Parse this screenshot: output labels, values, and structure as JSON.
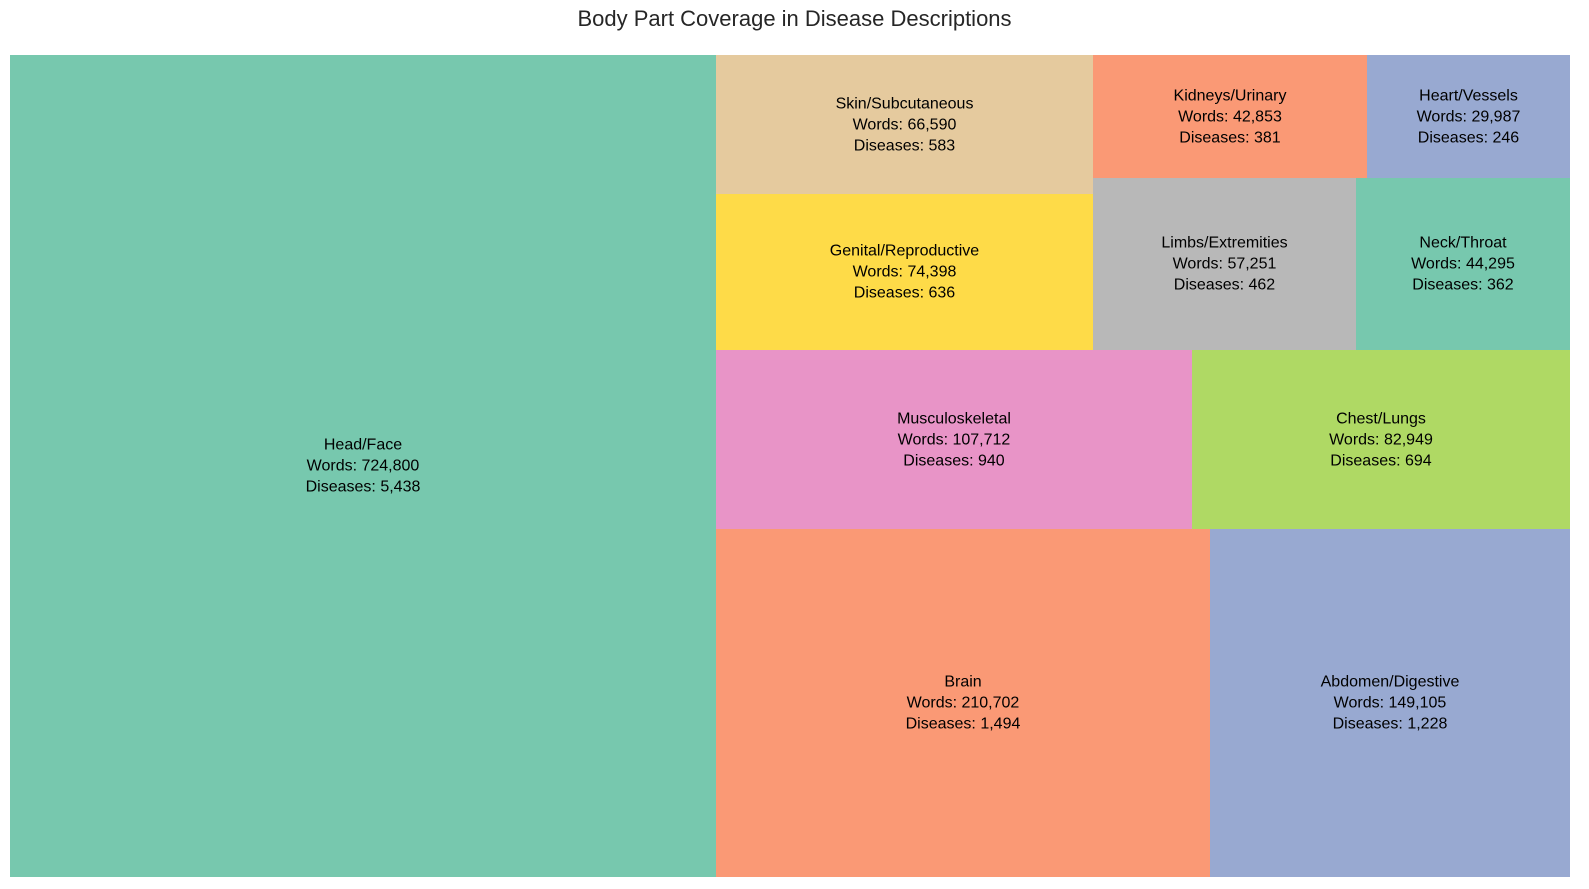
{
  "chart_data": {
    "type": "treemap",
    "title": "Body Part Coverage in Disease Descriptions",
    "words_prefix": "Words: ",
    "diseases_prefix": "Diseases: ",
    "items": [
      {
        "label": "Head/Face",
        "words": 724800,
        "diseases": 5438,
        "words_text": "724,800",
        "diseases_text": "5,438",
        "color": "#77c8ae"
      },
      {
        "label": "Brain",
        "words": 210702,
        "diseases": 1494,
        "words_text": "210,702",
        "diseases_text": "1,494",
        "color": "#fa9975"
      },
      {
        "label": "Abdomen/Digestive",
        "words": 149105,
        "diseases": 1228,
        "words_text": "149,105",
        "diseases_text": "1,228",
        "color": "#98a9d1"
      },
      {
        "label": "Musculoskeletal",
        "words": 107712,
        "diseases": 940,
        "words_text": "107,712",
        "diseases_text": "940",
        "color": "#e894c7"
      },
      {
        "label": "Chest/Lungs",
        "words": 82949,
        "diseases": 694,
        "words_text": "82,949",
        "diseases_text": "694",
        "color": "#afd964"
      },
      {
        "label": "Genital/Reproductive",
        "words": 74398,
        "diseases": 636,
        "words_text": "74,398",
        "diseases_text": "636",
        "color": "#fedb48"
      },
      {
        "label": "Skin/Subcutaneous",
        "words": 66590,
        "diseases": 583,
        "words_text": "66,590",
        "diseases_text": "583",
        "color": "#e5ca9e"
      },
      {
        "label": "Limbs/Extremities",
        "words": 57251,
        "diseases": 462,
        "words_text": "57,251",
        "diseases_text": "462",
        "color": "#b8b8b8"
      },
      {
        "label": "Neck/Throat",
        "words": 44295,
        "diseases": 362,
        "words_text": "44,295",
        "diseases_text": "362",
        "color": "#77c8ae"
      },
      {
        "label": "Kidneys/Urinary",
        "words": 42853,
        "diseases": 381,
        "words_text": "42,853",
        "diseases_text": "381",
        "color": "#fa9975"
      },
      {
        "label": "Heart/Vessels",
        "words": 29987,
        "diseases": 246,
        "words_text": "29,987",
        "diseases_text": "246",
        "color": "#98a9d1"
      }
    ]
  }
}
